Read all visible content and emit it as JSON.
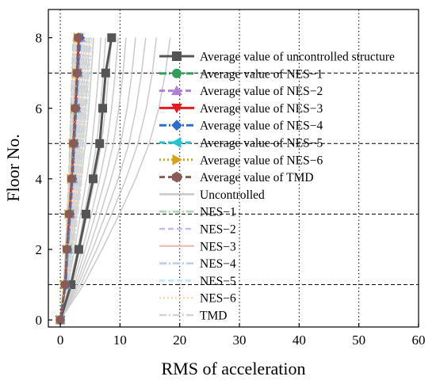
{
  "chart_data": {
    "type": "line",
    "xlabel": "RMS of acceleration",
    "ylabel": "Floor No.",
    "xlim": [
      -2,
      60
    ],
    "ylim": [
      -0.2,
      8.8
    ],
    "x_ticks": [
      0,
      10,
      20,
      30,
      40,
      50,
      60
    ],
    "y_ticks": [
      0,
      2,
      4,
      6,
      8
    ],
    "grid": "vertical dotted lines at x ticks; horizontal dashed lines at odd floors",
    "legend_position": "top-right",
    "floors": [
      0,
      1,
      2,
      3,
      4,
      5,
      6,
      7,
      8
    ],
    "series": [
      {
        "name": "Average value of uncontrolled structure",
        "color": "#555555",
        "marker": "square",
        "style": "solid",
        "values": [
          0,
          1.8,
          3.1,
          4.3,
          5.5,
          6.6,
          7.1,
          7.6,
          8.6
        ]
      },
      {
        "name": "Average value of NES−1",
        "color": "#2ea05a",
        "marker": "circle",
        "style": "dash-dot",
        "values": [
          0,
          0.8,
          1.2,
          1.6,
          2.0,
          2.3,
          2.6,
          2.9,
          3.2
        ]
      },
      {
        "name": "Average value of NES−2",
        "color": "#b07fd6",
        "marker": "triangle-up",
        "style": "dash",
        "values": [
          0,
          0.9,
          1.3,
          1.7,
          2.1,
          2.4,
          2.7,
          3.0,
          3.4
        ]
      },
      {
        "name": "Average value of NES−3",
        "color": "#e8191b",
        "marker": "triangle-down",
        "style": "solid",
        "values": [
          0,
          0.8,
          1.1,
          1.5,
          1.9,
          2.2,
          2.5,
          2.8,
          3.1
        ]
      },
      {
        "name": "Average value of NES−4",
        "color": "#2a6ecf",
        "marker": "diamond",
        "style": "dash-dot",
        "values": [
          0,
          0.9,
          1.2,
          1.6,
          2.0,
          2.3,
          2.6,
          2.9,
          3.3
        ]
      },
      {
        "name": "Average value of NES−5",
        "color": "#20c5d0",
        "marker": "triangle-left",
        "style": "dash",
        "values": [
          0,
          0.8,
          1.2,
          1.5,
          1.9,
          2.2,
          2.5,
          2.8,
          3.0
        ]
      },
      {
        "name": "Average value of NES−6",
        "color": "#d6a21c",
        "marker": "triangle-right",
        "style": "dot",
        "values": [
          0,
          0.7,
          1.1,
          1.4,
          1.8,
          2.1,
          2.4,
          2.7,
          2.9
        ]
      },
      {
        "name": "Average value of TMD",
        "color": "#8a5b58",
        "marker": "hexagon",
        "style": "dash",
        "values": [
          0,
          0.8,
          1.1,
          1.5,
          1.9,
          2.2,
          2.5,
          2.8,
          3.0
        ]
      }
    ],
    "individual_series": [
      {
        "name": "Uncontrolled",
        "color": "#c8c8c8",
        "style": "solid",
        "curves": [
          [
            0,
            1.0,
            1.9,
            2.7,
            3.5,
            4.2,
            4.8,
            5.2,
            5.6
          ],
          [
            0,
            1.3,
            2.4,
            3.4,
            4.4,
            5.3,
            5.9,
            6.4,
            6.8
          ],
          [
            0,
            1.6,
            2.9,
            4.0,
            5.1,
            6.1,
            6.7,
            7.2,
            7.6
          ],
          [
            0,
            1.8,
            3.2,
            4.5,
            5.8,
            6.9,
            7.6,
            8.1,
            8.6
          ],
          [
            0,
            2.1,
            3.7,
            5.2,
            6.6,
            7.8,
            8.6,
            9.2,
            9.7
          ],
          [
            0,
            2.4,
            4.2,
            5.9,
            7.5,
            8.9,
            9.8,
            10.5,
            11.0
          ],
          [
            0,
            2.7,
            4.8,
            6.7,
            8.5,
            10.1,
            11.2,
            12.0,
            12.6
          ],
          [
            0,
            3.0,
            5.4,
            7.6,
            9.7,
            11.5,
            12.7,
            13.6,
            14.3
          ],
          [
            0,
            3.4,
            6.1,
            8.6,
            11.0,
            13.0,
            14.4,
            15.4,
            16.1
          ],
          [
            0,
            3.9,
            7.0,
            9.9,
            12.6,
            14.9,
            16.5,
            17.6,
            18.4
          ]
        ]
      },
      {
        "name": "NES−1",
        "color": "#a8d8b5",
        "style": "dash-dot"
      },
      {
        "name": "NES−2",
        "color": "#cdb8ea",
        "style": "dash"
      },
      {
        "name": "NES−3",
        "color": "#f2c0c0",
        "style": "solid"
      },
      {
        "name": "NES−4",
        "color": "#b5cdf0",
        "style": "dash-dot"
      },
      {
        "name": "NES−5",
        "color": "#b8ecf0",
        "style": "dash"
      },
      {
        "name": "NES−6",
        "color": "#ecdcaa",
        "style": "dot"
      },
      {
        "name": "TMD",
        "color": "#d9cfcf",
        "style": "dash-dot"
      }
    ],
    "controlled_curves": [
      [
        0,
        0.6,
        0.9,
        1.2,
        1.5,
        1.7,
        1.9,
        2.1,
        2.3
      ],
      [
        0,
        0.7,
        1.0,
        1.3,
        1.7,
        1.9,
        2.2,
        2.4,
        2.6
      ],
      [
        0,
        0.8,
        1.2,
        1.6,
        1.9,
        2.2,
        2.5,
        2.8,
        3.0
      ],
      [
        0,
        0.9,
        1.3,
        1.8,
        2.2,
        2.5,
        2.8,
        3.1,
        3.4
      ],
      [
        0,
        1.0,
        1.5,
        2.0,
        2.4,
        2.8,
        3.1,
        3.4,
        3.7
      ],
      [
        0,
        1.1,
        1.6,
        2.2,
        2.7,
        3.1,
        3.5,
        3.8,
        4.1
      ],
      [
        0,
        1.2,
        1.8,
        2.4,
        3.0,
        3.4,
        3.8,
        4.2,
        4.5
      ],
      [
        0,
        1.3,
        2.0,
        2.7,
        3.3,
        3.8,
        4.3,
        4.7,
        5.0
      ]
    ]
  }
}
